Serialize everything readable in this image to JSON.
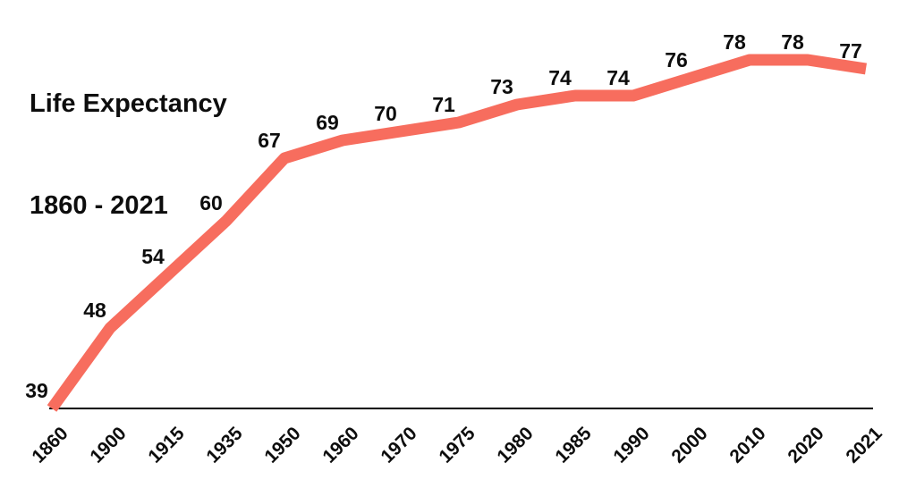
{
  "chart": {
    "title_line1": "Life Expectancy",
    "title_line2": "1860 - 2021"
  },
  "chart_data": {
    "type": "line",
    "title": "Life Expectancy 1860 - 2021",
    "categories": [
      "1860",
      "1900",
      "1915",
      "1935",
      "1950",
      "1960",
      "1970",
      "1975",
      "1980",
      "1985",
      "1990",
      "2000",
      "2010",
      "2020",
      "2021"
    ],
    "values": [
      39,
      48,
      54,
      60,
      67,
      69,
      70,
      71,
      73,
      74,
      74,
      76,
      78,
      78,
      77
    ],
    "series": [
      {
        "name": "Life expectancy",
        "values": [
          39,
          48,
          54,
          60,
          67,
          69,
          70,
          71,
          73,
          74,
          74,
          76,
          78,
          78,
          77
        ]
      }
    ],
    "xlabel": "",
    "ylabel": "",
    "ylim": [
      39,
      80
    ],
    "grid": false,
    "legend_position": "none",
    "data_labels_shown": true,
    "x_tick_rotation_deg": -45,
    "line_color": "#F76D5E",
    "axis_color": "#000000",
    "label_color": "#0d0d0d"
  }
}
